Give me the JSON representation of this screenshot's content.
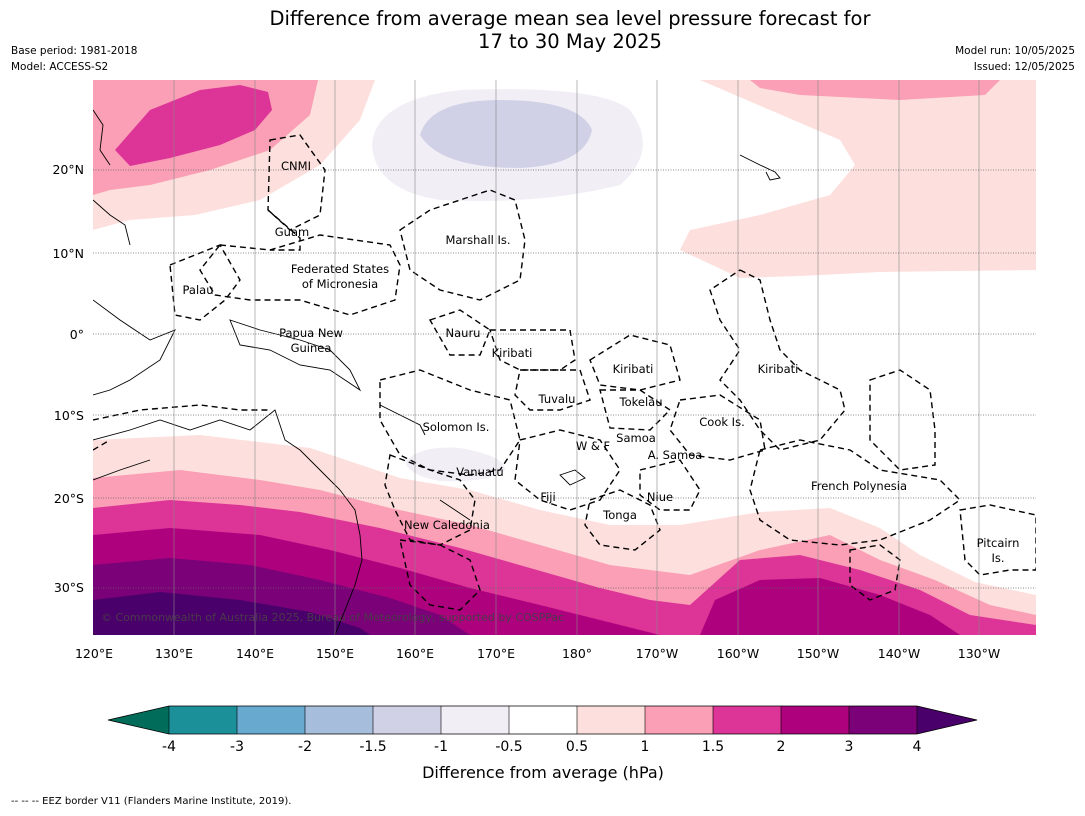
{
  "title_line1": "Difference from average mean sea level pressure forecast for",
  "title_line2": "17 to 30 May 2025",
  "base_period": "Base period: 1981-2018",
  "model": "Model: ACCESS-S2",
  "model_run": "Model run: 10/05/2025",
  "issued": "Issued: 12/05/2025",
  "copyright": "© Commonwealth of Australia 2025, Bureau of Meteorology, supported by COSPPac",
  "lat_labels": [
    "20°N",
    "10°N",
    "0°",
    "10°S",
    "20°S",
    "30°S"
  ],
  "lon_labels": [
    "120°E",
    "130°E",
    "140°E",
    "150°E",
    "160°E",
    "170°E",
    "180°",
    "170°W",
    "160°W",
    "150°W",
    "140°W",
    "130°W"
  ],
  "places": {
    "cnmi": "CNMI",
    "guam": "Guam",
    "marshall": "Marshall Is.",
    "fsm1": "Federated States",
    "fsm2": "of Micronesia",
    "palau": "Palau",
    "png1": "Papua New",
    "png2": "Guinea",
    "nauru": "Nauru",
    "kiribati_w": "Kiribati",
    "kiribati_c": "Kiribati",
    "kiribati_e": "Kiribati",
    "tuvalu": "Tuvalu",
    "tokelau": "Tokelau",
    "cook": "Cook Is.",
    "solomon": "Solomon Is.",
    "samoa": "Samoa",
    "wf": "W & F",
    "asamoa": "A. Samoa",
    "vanuatu": "Vanuatu",
    "fiji": "Fiji",
    "niue": "Niue",
    "tonga": "Tonga",
    "french_polynesia": "French Polynesia",
    "newcal": "New Caledonia",
    "pitcairn1": "Pitcairn",
    "pitcairn2": "Is."
  },
  "colorbar": {
    "label": "Difference from average (hPa)",
    "tick_labels": [
      "-4",
      "-3",
      "-2",
      "-1.5",
      "-1",
      "-0.5",
      "0.5",
      "1",
      "1.5",
      "2",
      "3",
      "4"
    ],
    "colors": {
      "below_min": "#016c59",
      "b1": "#1c9099",
      "b2": "#67a9cf",
      "b3": "#a6bddb",
      "b4": "#d0d1e6",
      "b5": "#f1eef6",
      "b6": "#ffffff",
      "b7": "#fde0dd",
      "b8": "#fa9fb5",
      "b9": "#dd3497",
      "b10": "#ae017e",
      "b11": "#7a0177",
      "above_max": "#49006a"
    }
  },
  "footnote": "-- -- -- EEZ border V11 (Flanders Marine Institute, 2019)."
}
